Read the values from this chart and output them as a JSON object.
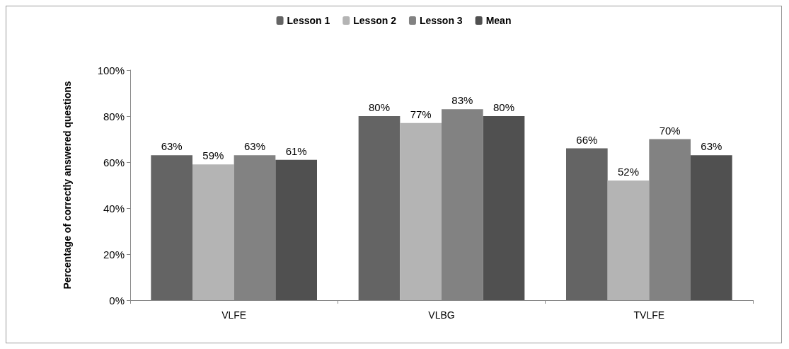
{
  "chart_data": {
    "type": "bar",
    "ylabel": "Percentage of correctly answered questions",
    "categories": [
      "VLFE",
      "VLBG",
      "TVLFE"
    ],
    "series": [
      {
        "name": "Lesson 1",
        "color": "#646464",
        "values": [
          63,
          80,
          66
        ],
        "value_labels": [
          "63%",
          "80%",
          "66%"
        ]
      },
      {
        "name": "Lesson 2",
        "color": "#b4b4b4",
        "values": [
          59,
          77,
          52
        ],
        "value_labels": [
          "59%",
          "77%",
          "52%"
        ]
      },
      {
        "name": "Lesson 3",
        "color": "#828282",
        "values": [
          63,
          83,
          70
        ],
        "value_labels": [
          "63%",
          "83%",
          "70%"
        ]
      },
      {
        "name": "Mean",
        "color": "#505050",
        "values": [
          61,
          80,
          63
        ],
        "value_labels": [
          "61%",
          "80%",
          "63%"
        ]
      }
    ],
    "ylim": [
      0,
      100
    ],
    "yticks": [
      {
        "value": 0,
        "label": "0%"
      },
      {
        "value": 20,
        "label": "20%"
      },
      {
        "value": 40,
        "label": "40%"
      },
      {
        "value": 60,
        "label": "60%"
      },
      {
        "value": 80,
        "label": "80%"
      },
      {
        "value": 100,
        "label": "100%"
      }
    ],
    "grid": false,
    "legend": "top"
  }
}
